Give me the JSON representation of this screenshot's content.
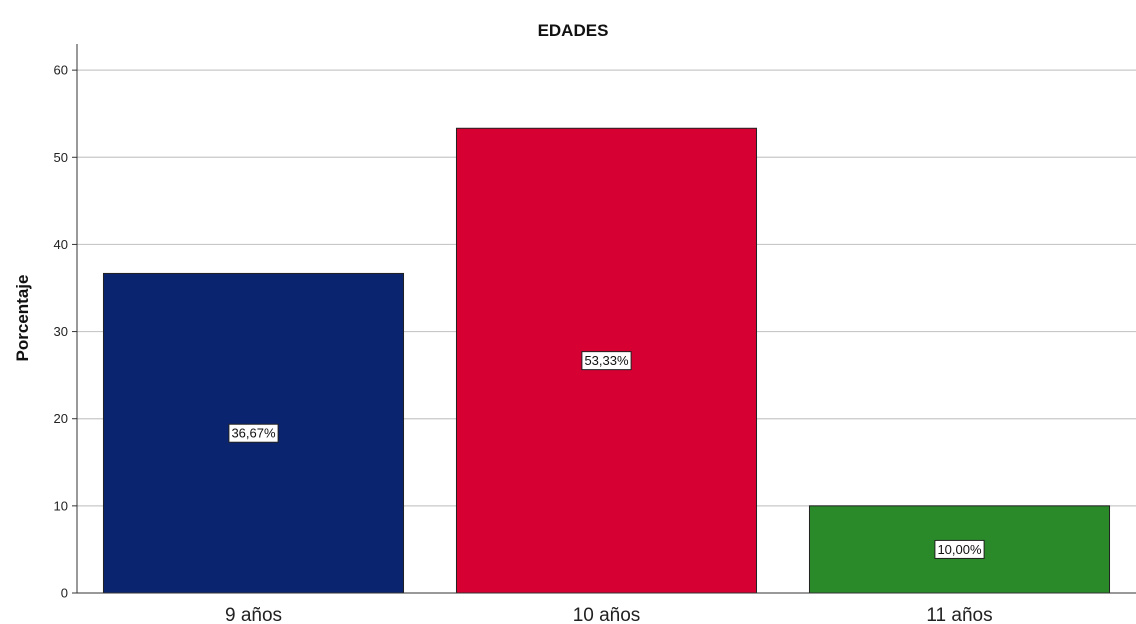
{
  "chart_data": {
    "type": "bar",
    "title": "EDADES",
    "xlabel": "",
    "ylabel": "Porcentaje",
    "categories": [
      "9 años",
      "10 años",
      "11 años"
    ],
    "values": [
      36.67,
      53.33,
      10.0
    ],
    "data_labels": [
      "36,67%",
      "53,33%",
      "10,00%"
    ],
    "colors": [
      "#0b2470",
      "#d60032",
      "#2a8a2a"
    ],
    "ylim": [
      0,
      63
    ],
    "yticks": [
      0,
      10,
      20,
      30,
      40,
      50,
      60
    ],
    "grid": true,
    "legend": "none"
  }
}
